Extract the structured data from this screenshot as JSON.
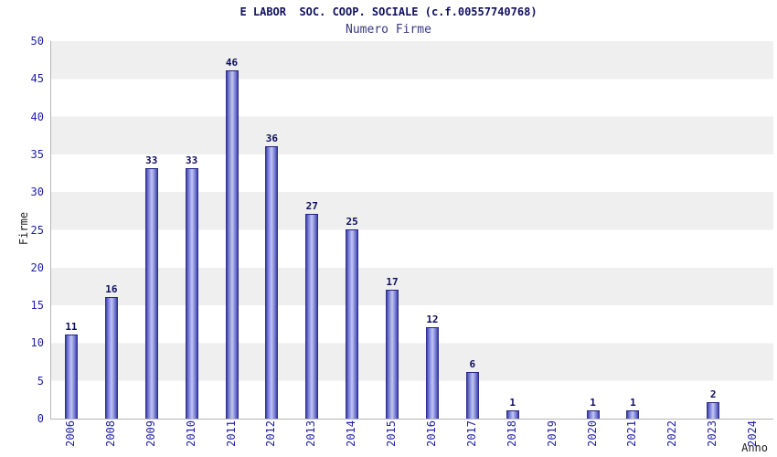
{
  "chart_data": {
    "type": "bar",
    "title": "E LABOR  SOC. COOP. SOCIALE (c.f.00557740768)",
    "subtitle": "Numero Firme",
    "xlabel": "Anno",
    "ylabel": "Firme",
    "categories": [
      "2006",
      "2008",
      "2009",
      "2010",
      "2011",
      "2012",
      "2013",
      "2014",
      "2015",
      "2016",
      "2017",
      "2018",
      "2019",
      "2020",
      "2021",
      "2022",
      "2023",
      "2024"
    ],
    "values": [
      11,
      16,
      33,
      33,
      46,
      36,
      27,
      25,
      17,
      12,
      6,
      1,
      0,
      1,
      1,
      0,
      2,
      0
    ],
    "ylim": [
      0,
      50
    ],
    "ytick_step": 5,
    "grid": "horizontal-bands",
    "legend": "none",
    "colors": {
      "bar_dark": "#23257f",
      "bar_mid": "#6a6fd0",
      "bar_light": "#c3c6f2",
      "tick_label": "#2121a8",
      "value_label": "#0d0d5e",
      "band": "#efefef",
      "axis": "#b5b5b5",
      "title": "#101060",
      "subtitle": "#3a3a80"
    }
  }
}
